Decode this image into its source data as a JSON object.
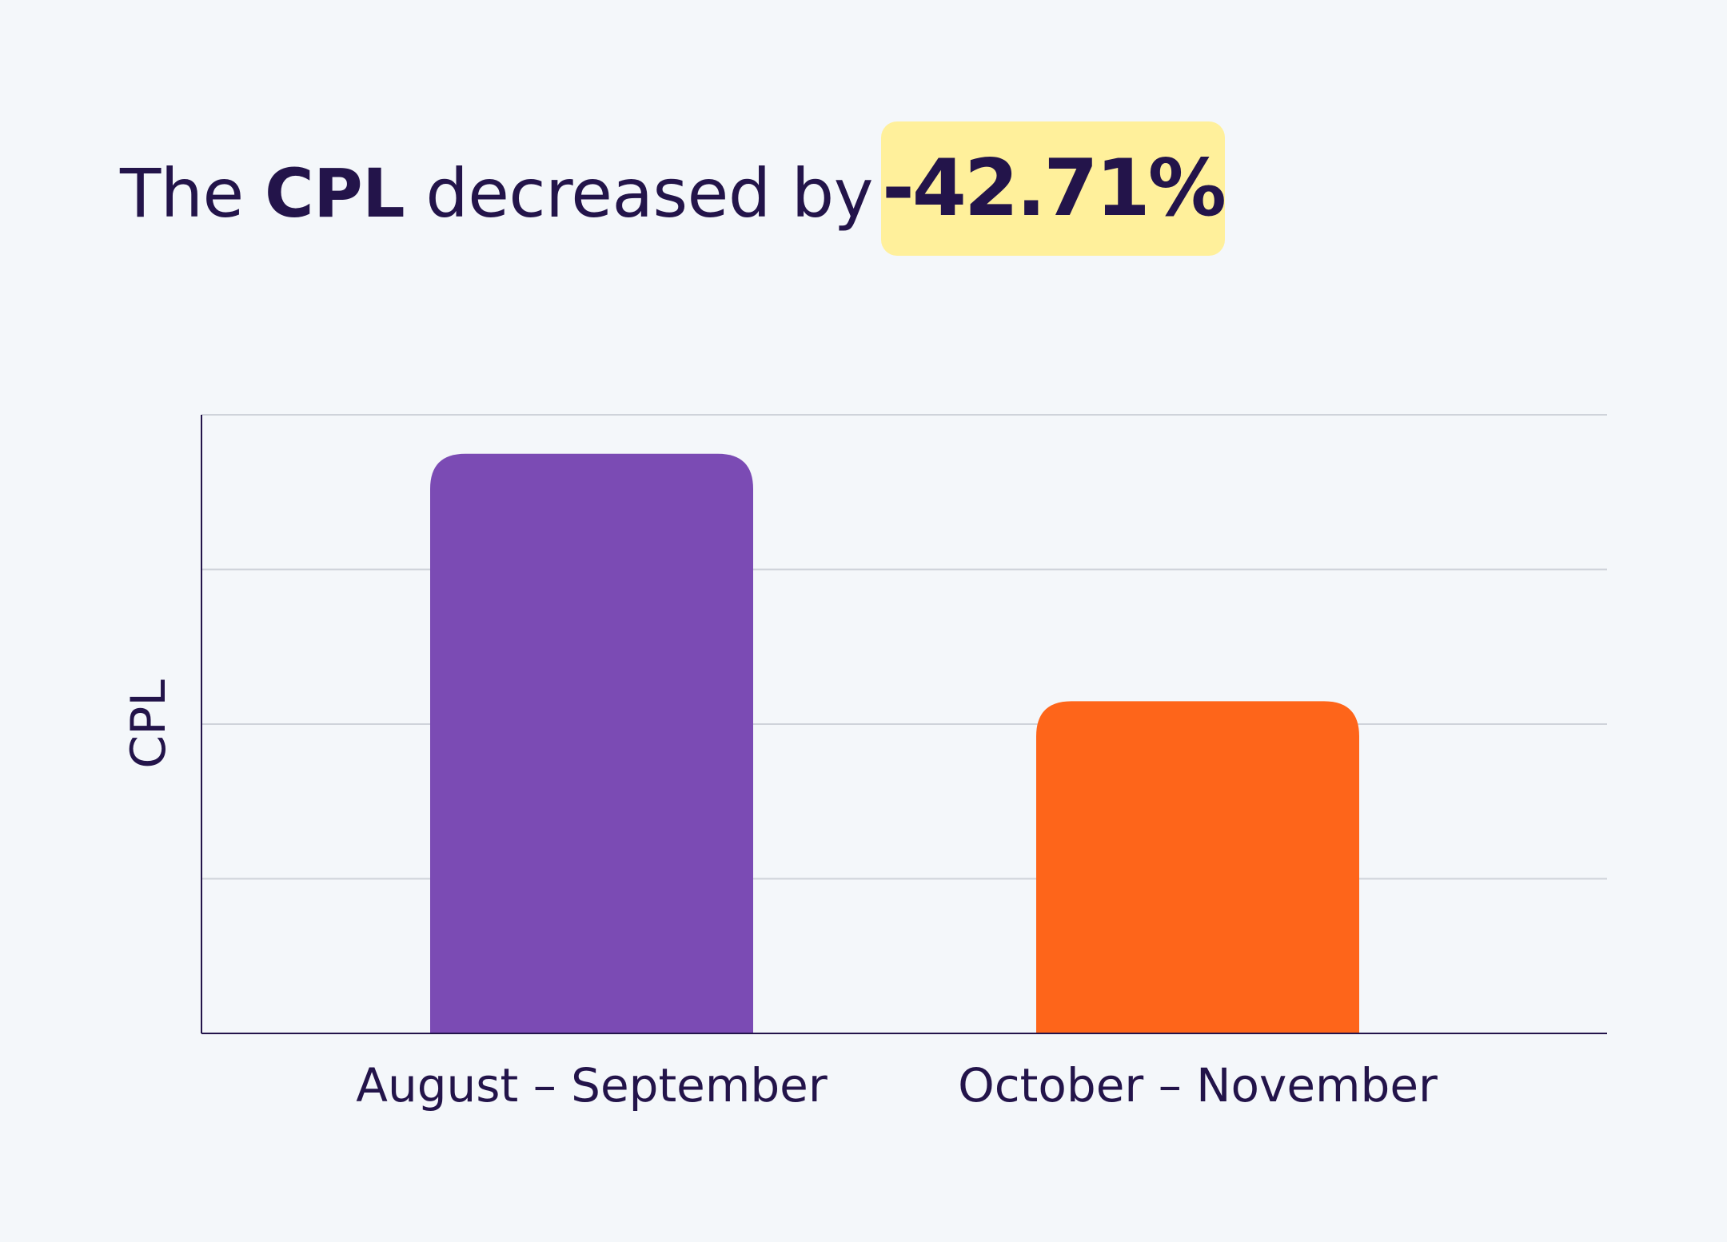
{
  "headline": {
    "prefix": "The",
    "metric": "CPL",
    "suffix": "decreased by",
    "change": "-42.71%"
  },
  "colors": {
    "background": "#f4f7fa",
    "text": "#23144a",
    "badge": "#fff09b",
    "gridline": "#cfd3da",
    "axis": "#23144a"
  },
  "chart_data": {
    "type": "bar",
    "categories": [
      "August  – September",
      "October – November"
    ],
    "series": [
      {
        "values": [
          93.7,
          53.7
        ]
      }
    ],
    "bar_colors": [
      "#7b4bb4",
      "#fe651a"
    ],
    "ylabel": "CPL",
    "xlabel": "",
    "ylim": [
      0,
      100
    ],
    "y_tick_labels_shown": false,
    "gridlines": [
      25,
      50,
      75,
      100
    ],
    "grid": true,
    "legend": "none"
  }
}
